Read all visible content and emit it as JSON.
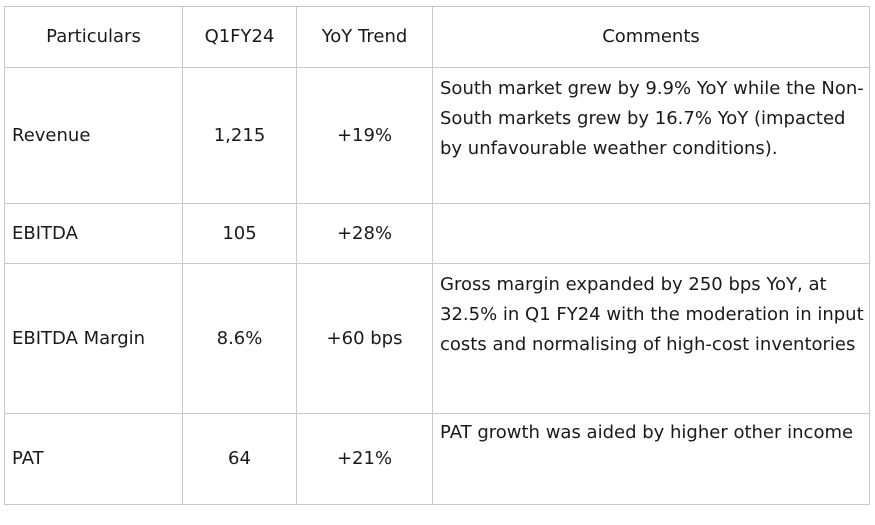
{
  "table": {
    "headers": [
      "Particulars",
      "Q1FY24",
      "YoY Trend",
      "Comments"
    ],
    "rows": [
      {
        "particular": "Revenue",
        "q1fy24": "1,215",
        "yoy": "+19%",
        "comment": "South market grew by 9.9% YoY while the Non-South markets grew by 16.7% YoY (impacted by unfavourable weather conditions)."
      },
      {
        "particular": "EBITDA",
        "q1fy24": "105",
        "yoy": "+28%",
        "comment": ""
      },
      {
        "particular": "EBITDA Margin",
        "q1fy24": "8.6%",
        "yoy": "+60 bps",
        "comment": "Gross margin expanded by 250 bps YoY, at 32.5% in Q1 FY24 with the moderation in input costs and normalising of high-cost inventories"
      },
      {
        "particular": "PAT",
        "q1fy24": "64",
        "yoy": "+21%",
        "comment": "PAT growth was aided by higher other income"
      }
    ]
  }
}
